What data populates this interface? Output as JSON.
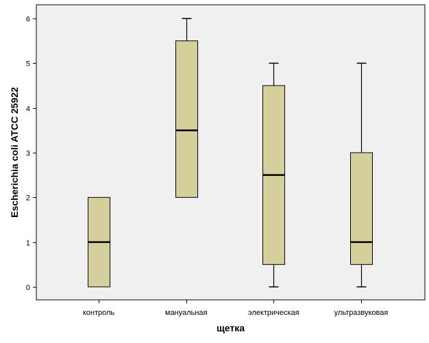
{
  "chart_data": {
    "type": "boxplot",
    "title": "",
    "xlabel": "щетка",
    "ylabel": "Escherichia coli ATCC 25922",
    "ylim": [
      0,
      6
    ],
    "yticks": [
      0,
      1,
      2,
      3,
      4,
      5,
      6
    ],
    "grid": false,
    "categories": [
      "контроль",
      "мануальная",
      "электрическая",
      "ультразвуковая"
    ],
    "boxes": [
      {
        "category": "контроль",
        "whisker_low": 0,
        "q1": 0,
        "median": 1,
        "q3": 2,
        "whisker_high": 2
      },
      {
        "category": "мануальная",
        "whisker_low": 2,
        "q1": 2,
        "median": 3.5,
        "q3": 5.5,
        "whisker_high": 6
      },
      {
        "category": "электрическая",
        "whisker_low": 0,
        "q1": 0.5,
        "median": 2.5,
        "q3": 4.5,
        "whisker_high": 5
      },
      {
        "category": "ультразвуковая",
        "whisker_low": 0,
        "q1": 0.5,
        "median": 1,
        "q3": 3,
        "whisker_high": 5
      }
    ],
    "colors": {
      "box_fill": "#d4cf9b",
      "plot_background": "#f0f0f0",
      "line": "#000000",
      "axis": "#000000"
    }
  }
}
